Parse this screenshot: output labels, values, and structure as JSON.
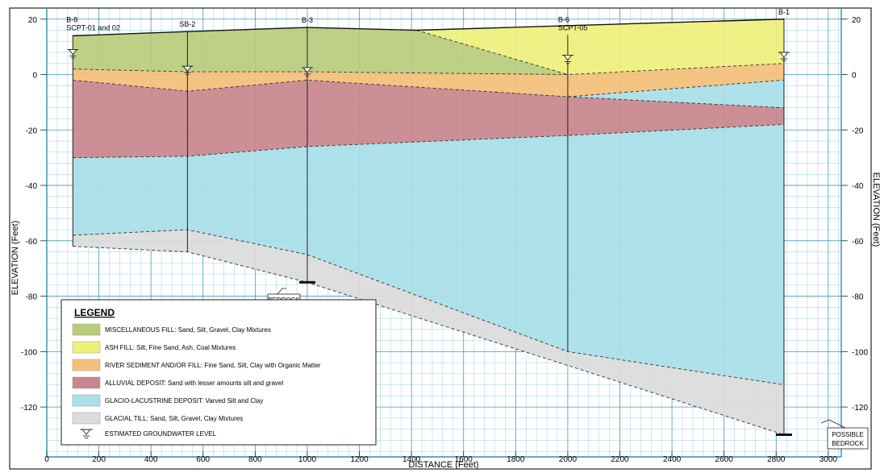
{
  "axes": {
    "ylabel": "ELEVATION (Feet)",
    "ylabel_right": "ELEVATION (Feet)",
    "xlabel": "DISTANCE (Feet)",
    "xticks": [
      "0",
      "200",
      "400",
      "600",
      "800",
      "1000",
      "1200",
      "1400",
      "1600",
      "1800",
      "2000",
      "2200",
      "2400",
      "2600",
      "2800",
      "3000"
    ],
    "yticks": [
      "20",
      "0",
      "-20",
      "-40",
      "-60",
      "-80",
      "-100",
      "-120"
    ],
    "yticks_right": [
      "20",
      "0",
      "-20",
      "-40",
      "-60",
      "-80",
      "-100",
      "-120"
    ]
  },
  "borings": [
    {
      "name": "B-8",
      "sub": "SCPT-01 and 02",
      "x": 100,
      "ground": 14,
      "gw": 9,
      "bottom": -62,
      "bedrock": false
    },
    {
      "name": "SB-2",
      "sub": "",
      "x": 540,
      "ground": 15.5,
      "gw": 3,
      "bottom": -64,
      "bedrock": false
    },
    {
      "name": "B-3",
      "sub": "",
      "x": 1000,
      "ground": 17,
      "gw": 2.5,
      "bottom": -75,
      "bedrock": true
    },
    {
      "name": "B-6",
      "sub": "SCPT-05",
      "x": 2000,
      "ground": 14,
      "gw": 7,
      "bottom": -100,
      "bedrock": false
    },
    {
      "name": "B-1",
      "sub": "",
      "x": 2830,
      "ground": 20,
      "gw": 8,
      "bottom": -130,
      "bedrock": true
    }
  ],
  "callouts": {
    "bedrock": "BEDROCK",
    "possible_bedrock_1": "POSSIBLE",
    "possible_bedrock_2": "BEDROCK"
  },
  "layers": [
    {
      "key": "misc_fill",
      "color": "#b8cc7c",
      "points": [
        [
          100,
          14
        ],
        [
          540,
          15.5
        ],
        [
          1000,
          17
        ],
        [
          1420,
          16
        ],
        [
          2000,
          0
        ],
        [
          1000,
          1
        ],
        [
          540,
          1
        ],
        [
          100,
          2
        ]
      ]
    },
    {
      "key": "ash_fill",
      "color": "#eef07c",
      "points": [
        [
          1420,
          16
        ],
        [
          2830,
          20
        ],
        [
          2830,
          4
        ],
        [
          2000,
          0
        ]
      ]
    },
    {
      "key": "river_sediment",
      "color": "#f4c07a",
      "points": [
        [
          100,
          2
        ],
        [
          540,
          1
        ],
        [
          1000,
          1
        ],
        [
          2000,
          0
        ],
        [
          2830,
          4
        ],
        [
          2830,
          -2
        ],
        [
          2000,
          -8
        ],
        [
          1000,
          -2
        ],
        [
          540,
          -6
        ],
        [
          100,
          -2
        ]
      ]
    },
    {
      "key": "alluvial",
      "color": "#c8868e",
      "points": [
        [
          100,
          -2
        ],
        [
          540,
          -6
        ],
        [
          1000,
          -2
        ],
        [
          2000,
          -8
        ],
        [
          2830,
          -12
        ],
        [
          2830,
          -18
        ],
        [
          2000,
          -22
        ],
        [
          1000,
          -26
        ],
        [
          540,
          -29.5
        ],
        [
          100,
          -30
        ]
      ]
    },
    {
      "key": "glacio",
      "color": "#a9dfe9",
      "points": [
        [
          100,
          -30
        ],
        [
          540,
          -29.5
        ],
        [
          1000,
          -26
        ],
        [
          2000,
          -22
        ],
        [
          2830,
          -18
        ],
        [
          2830,
          -12
        ],
        [
          2000,
          -8
        ],
        [
          2830,
          -2
        ],
        [
          2830,
          -112
        ],
        [
          2000,
          -100
        ],
        [
          1000,
          -65
        ],
        [
          540,
          -56
        ],
        [
          100,
          -58
        ]
      ]
    },
    {
      "key": "glacial_till",
      "color": "#dcdcdc",
      "points": [
        [
          100,
          -58
        ],
        [
          540,
          -56
        ],
        [
          1000,
          -65
        ],
        [
          2000,
          -100
        ],
        [
          2830,
          -112
        ],
        [
          2830,
          -130
        ],
        [
          2000,
          -105
        ],
        [
          1000,
          -75
        ],
        [
          540,
          -64
        ],
        [
          100,
          -62
        ]
      ]
    }
  ],
  "legend": {
    "title": "LEGEND",
    "items": [
      {
        "color": "#b8cc7c",
        "text": "MISCELLANEOUS FILL: Sand, Silt, Gravel, Clay Mixtures"
      },
      {
        "color": "#eef07c",
        "text": "ASH FILL: Silt, Fine Sand, Ash, Coal Mixtures"
      },
      {
        "color": "#f4c07a",
        "text": "RIVER SEDIMENT AND/OR FILL: Fine Sand, Silt, Clay with Organic Matter"
      },
      {
        "color": "#c8868e",
        "text": "ALLUVIAL DEPOSIT: Sand with lesser amounts silt and gravel"
      },
      {
        "color": "#a9dfe9",
        "text": "GLACIO-LACUSTRINE DEPOSIT: Varved Silt and Clay"
      },
      {
        "color": "#dcdcdc",
        "text": "GLACIAL TILL: Sand, Silt, Gravel, Clay Mixtures"
      }
    ],
    "groundwater_label": "ESTIMATED GROUNDWATER LEVEL"
  },
  "colors": {
    "grid": "#4aaed0",
    "grid_major": "#2f8fb4",
    "line": "#222222"
  }
}
